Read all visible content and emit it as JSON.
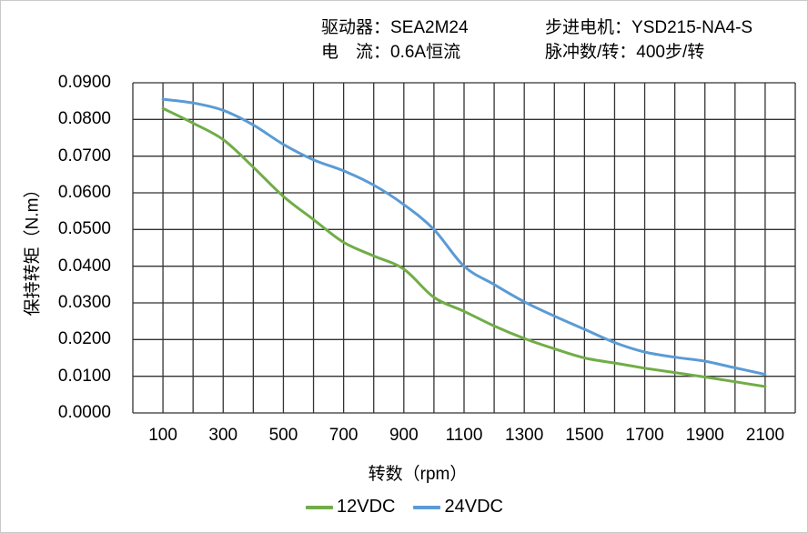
{
  "header": {
    "driver": {
      "label": "驱动器：",
      "value": "SEA2M24"
    },
    "current": {
      "label": "电　流：",
      "value": "0.6A恒流"
    },
    "motor": {
      "label": "步进电机：",
      "value": "YSD215-NA4-S"
    },
    "pulses": {
      "label": "脉冲数/转：",
      "value": "400步/转"
    }
  },
  "colors": {
    "grid": "#333333",
    "text": "#000000",
    "page_border": "#c9c9c9",
    "series_12vdc": "#70AD47",
    "series_24vdc": "#5B9BD5"
  },
  "chart_data": {
    "type": "line",
    "title": "",
    "xlabel": "转数（rpm）",
    "ylabel": "保持转矩（N.m）",
    "xlim": [
      0,
      2200
    ],
    "ylim": [
      0,
      0.09
    ],
    "x_grid_step": 100,
    "y_grid_step": 0.01,
    "grid": true,
    "legend_position": "bottom",
    "x": [
      100,
      200,
      300,
      400,
      500,
      600,
      700,
      800,
      900,
      1000,
      1100,
      1200,
      1300,
      1400,
      1500,
      1600,
      1700,
      1800,
      1900,
      2000,
      2100
    ],
    "x_tick_labels": [
      "100",
      "300",
      "500",
      "700",
      "900",
      "1100",
      "1300",
      "1500",
      "1700",
      "1900",
      "2100"
    ],
    "y_tick_labels": [
      "0.0900",
      "0.0800",
      "0.0700",
      "0.0600",
      "0.0500",
      "0.0400",
      "0.0300",
      "0.0200",
      "0.0100",
      "0.0000"
    ],
    "series": [
      {
        "name": "12VDC",
        "color": "#70AD47",
        "values": [
          0.083,
          0.079,
          0.0745,
          0.067,
          0.059,
          0.0527,
          0.0465,
          0.0428,
          0.0392,
          0.0315,
          0.0277,
          0.0237,
          0.0203,
          0.0175,
          0.015,
          0.0136,
          0.0122,
          0.011,
          0.0098,
          0.0085,
          0.0072
        ]
      },
      {
        "name": "24VDC",
        "color": "#5B9BD5",
        "values": [
          0.0855,
          0.0845,
          0.0825,
          0.0785,
          0.0732,
          0.069,
          0.066,
          0.0621,
          0.0568,
          0.05,
          0.04,
          0.035,
          0.0303,
          0.0264,
          0.0228,
          0.0192,
          0.0166,
          0.0152,
          0.0141,
          0.0123,
          0.0105
        ]
      }
    ]
  }
}
